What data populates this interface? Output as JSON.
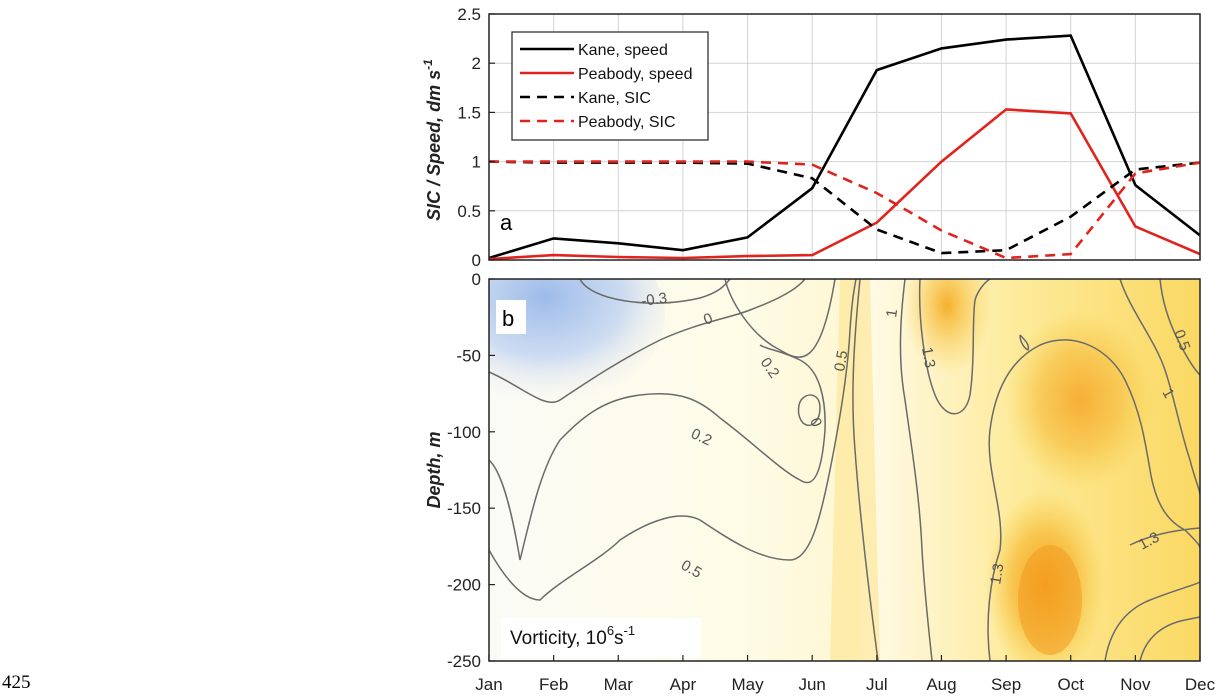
{
  "page_number": "425",
  "colors": {
    "kane": "#000000",
    "peabody": "#e0241d",
    "contour": "#6a6a6a",
    "grid": "#d3d3d3",
    "negative_vorticity": "#aec6ec",
    "high_vorticity": "#f6a623"
  },
  "chart_data": [
    {
      "type": "line",
      "panel_label": "a",
      "ylabel": "SIC / Speed, dm s",
      "ylabel_superscript": "-1",
      "ylim": [
        0,
        2.5
      ],
      "yticks": [
        "0",
        "0.5",
        "1",
        "1.5",
        "2",
        "2.5"
      ],
      "categories": [
        "Jan",
        "Feb",
        "Mar",
        "Apr",
        "May",
        "Jun",
        "Jul",
        "Aug",
        "Sep",
        "Oct",
        "Nov",
        "Dec"
      ],
      "grid": true,
      "legend_position": "top-left",
      "series": [
        {
          "name": "Kane, speed",
          "style": "solid",
          "color": "#000000",
          "values": [
            0.02,
            0.22,
            0.17,
            0.1,
            0.23,
            0.73,
            1.93,
            2.15,
            2.24,
            2.28,
            0.76,
            0.25
          ]
        },
        {
          "name": "Peabody, speed",
          "style": "solid",
          "color": "#e0241d",
          "values": [
            0.01,
            0.05,
            0.03,
            0.02,
            0.04,
            0.05,
            0.38,
            1.0,
            1.53,
            1.49,
            0.34,
            0.06
          ]
        },
        {
          "name": "Kane, SIC",
          "style": "dashed",
          "color": "#000000",
          "values": [
            1.0,
            0.99,
            0.99,
            0.99,
            0.98,
            0.83,
            0.31,
            0.07,
            0.1,
            0.44,
            0.92,
            0.99
          ]
        },
        {
          "name": "Peabody, SIC",
          "style": "dashed",
          "color": "#e0241d",
          "values": [
            1.0,
            1.0,
            1.0,
            1.0,
            1.0,
            0.97,
            0.68,
            0.3,
            0.02,
            0.06,
            0.88,
            0.99
          ]
        }
      ]
    },
    {
      "type": "heatmap",
      "panel_label": "b",
      "ylabel": "Depth, m",
      "ylim": [
        -250,
        0
      ],
      "yticks": [
        "0",
        "-50",
        "-100",
        "-150",
        "-200",
        "-250"
      ],
      "xticks": [
        "Jan",
        "Feb",
        "Mar",
        "Apr",
        "May",
        "Jun",
        "Jul",
        "Aug",
        "Sep",
        "Oct",
        "Nov",
        "Dec"
      ],
      "annotation": "Vorticity, 10",
      "annotation_superscript_1": "6",
      "annotation_mid": "s",
      "annotation_superscript_2": "-1",
      "contour_labels": [
        "-0.3",
        "0",
        "0.2",
        "0",
        "0.2",
        "0.5",
        "0.5",
        "1",
        "1.3",
        "1.3",
        "1.3",
        "1",
        "0.5"
      ]
    }
  ]
}
